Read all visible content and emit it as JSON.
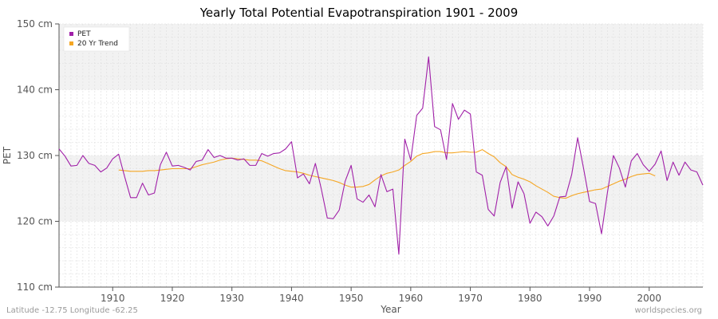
{
  "chart_data": {
    "type": "line",
    "title": "Yearly Total Potential Evapotranspiration 1901 - 2009",
    "xlabel": "Year",
    "ylabel": "PET",
    "xlim": [
      1901,
      2009
    ],
    "ylim": [
      110,
      150
    ],
    "x_ticks": [
      1910,
      1920,
      1930,
      1940,
      1950,
      1960,
      1970,
      1980,
      1990,
      2000
    ],
    "y_ticks": [
      {
        "value": 110,
        "label": "110 cm"
      },
      {
        "value": 120,
        "label": "120 cm"
      },
      {
        "value": 130,
        "label": "130 cm"
      },
      {
        "value": 140,
        "label": "140 cm"
      },
      {
        "value": 150,
        "label": "150 cm"
      }
    ],
    "legend_position": "top-left",
    "colors": {
      "pet": "#a020a8",
      "trend": "#f5a623",
      "band": "#f2f2f2",
      "grid": "#dddddd",
      "axis": "#555555"
    },
    "series": [
      {
        "name": "PET",
        "x_start": 1901,
        "values": [
          131.0,
          129.9,
          128.4,
          128.5,
          130.0,
          128.8,
          128.5,
          127.5,
          128.1,
          129.5,
          130.2,
          126.8,
          123.6,
          123.6,
          125.8,
          124.0,
          124.3,
          128.6,
          130.5,
          128.4,
          128.5,
          128.2,
          127.8,
          129.1,
          129.3,
          130.9,
          129.7,
          130.0,
          129.6,
          129.6,
          129.3,
          129.5,
          128.5,
          128.5,
          130.3,
          129.9,
          130.3,
          130.4,
          131.0,
          132.1,
          126.6,
          127.2,
          125.7,
          128.8,
          124.9,
          120.5,
          120.4,
          121.7,
          126.1,
          128.5,
          123.4,
          122.9,
          124.0,
          122.2,
          127.1,
          124.5,
          124.9,
          115.0,
          132.5,
          129.3,
          136.1,
          137.2,
          145.0,
          134.4,
          133.9,
          129.4,
          137.9,
          135.5,
          136.9,
          136.3,
          127.5,
          127.0,
          121.8,
          120.8,
          125.9,
          128.3,
          122.0,
          126.0,
          124.2,
          119.7,
          121.4,
          120.7,
          119.3,
          120.8,
          123.7,
          123.8,
          127.1,
          132.7,
          128.0,
          123.0,
          122.7,
          118.1,
          124.4,
          130.0,
          128.1,
          125.2,
          129.2,
          130.3,
          128.6,
          127.6,
          128.7,
          130.7,
          126.2,
          129.0,
          127.0,
          129.0,
          127.8,
          127.5,
          125.5
        ]
      },
      {
        "name": "20 Yr Trend",
        "x_start": 1911,
        "values": [
          127.8,
          127.7,
          127.6,
          127.6,
          127.6,
          127.7,
          127.7,
          127.8,
          127.9,
          128.0,
          128.0,
          128.0,
          128.0,
          128.3,
          128.6,
          128.8,
          129.0,
          129.3,
          129.5,
          129.6,
          129.5,
          129.4,
          129.3,
          129.3,
          129.2,
          128.8,
          128.4,
          128.0,
          127.7,
          127.6,
          127.5,
          127.3,
          127.0,
          126.8,
          126.6,
          126.4,
          126.2,
          125.9,
          125.5,
          125.2,
          125.2,
          125.3,
          125.6,
          126.3,
          126.9,
          127.3,
          127.5,
          127.8,
          128.5,
          129.1,
          129.9,
          130.3,
          130.4,
          130.6,
          130.6,
          130.4,
          130.4,
          130.5,
          130.6,
          130.5,
          130.5,
          130.9,
          130.3,
          129.8,
          128.9,
          128.3,
          127.1,
          126.7,
          126.4,
          126.0,
          125.4,
          124.9,
          124.4,
          123.8,
          123.6,
          123.5,
          123.9,
          124.2,
          124.4,
          124.6,
          124.8,
          124.9,
          125.3,
          125.7,
          126.1,
          126.4,
          126.8,
          127.1,
          127.2,
          127.3,
          126.9
        ]
      }
    ],
    "footer_left": "Latitude -12.75 Longitude -62.25",
    "footer_right": "worldspecies.org"
  }
}
